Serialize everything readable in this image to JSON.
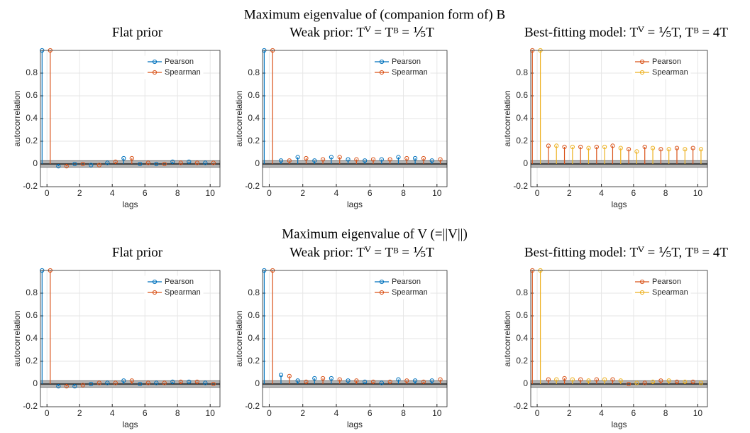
{
  "figure_titles": [
    "Maximum eigenvalue of (companion form of) B",
    "Maximum eigenvalue of V (=||V||)"
  ],
  "chart_data": [
    {
      "type": "stem",
      "title": "Flat prior",
      "xlabel": "lags",
      "ylabel": "autocorrelation",
      "xlim": [
        -0.4,
        10.6
      ],
      "ylim": [
        -0.2,
        1
      ],
      "xticks": [
        0,
        2,
        4,
        6,
        8,
        10
      ],
      "yticks": [
        -0.2,
        0,
        0.2,
        0.4,
        0.6,
        0.8
      ],
      "grid": true,
      "legend": "upper right",
      "confidence_band": [
        -0.03,
        0.03
      ],
      "series": [
        {
          "name": "Pearson",
          "color": "#0072bd",
          "x": [
            -0.3,
            0.7,
            1.7,
            2.7,
            3.7,
            4.7,
            5.7,
            6.7,
            7.7,
            8.7,
            9.7
          ],
          "values": [
            1,
            -0.02,
            0.0,
            -0.01,
            0.01,
            0.05,
            0.0,
            0.0,
            0.02,
            0.02,
            0.01
          ]
        },
        {
          "name": "Spearman",
          "color": "#d95319",
          "x": [
            0.2,
            1.2,
            2.2,
            3.2,
            4.2,
            5.2,
            6.2,
            7.2,
            8.2,
            9.2,
            10.2
          ],
          "values": [
            1,
            -0.02,
            0.0,
            -0.01,
            0.02,
            0.05,
            0.01,
            0.0,
            0.01,
            0.01,
            0.01
          ]
        }
      ]
    },
    {
      "type": "stem",
      "title": "Weak prior: Tⱽ = Tᴮ = ⅕T",
      "xlabel": "lags",
      "ylabel": "autocorrelation",
      "xlim": [
        -0.4,
        10.6
      ],
      "ylim": [
        -0.2,
        1
      ],
      "xticks": [
        0,
        2,
        4,
        6,
        8,
        10
      ],
      "yticks": [
        -0.2,
        0,
        0.2,
        0.4,
        0.6,
        0.8
      ],
      "grid": true,
      "legend": "upper right",
      "confidence_band": [
        -0.03,
        0.03
      ],
      "series": [
        {
          "name": "Pearson",
          "color": "#0072bd",
          "x": [
            -0.3,
            0.7,
            1.7,
            2.7,
            3.7,
            4.7,
            5.7,
            6.7,
            7.7,
            8.7,
            9.7
          ],
          "values": [
            1,
            0.03,
            0.06,
            0.03,
            0.06,
            0.04,
            0.03,
            0.04,
            0.06,
            0.05,
            0.03
          ]
        },
        {
          "name": "Spearman",
          "color": "#d95319",
          "x": [
            0.2,
            1.2,
            2.2,
            3.2,
            4.2,
            5.2,
            6.2,
            7.2,
            8.2,
            9.2,
            10.2
          ],
          "values": [
            1,
            0.03,
            0.05,
            0.04,
            0.06,
            0.04,
            0.04,
            0.04,
            0.05,
            0.05,
            0.04
          ]
        }
      ]
    },
    {
      "type": "stem",
      "title": "Best-fitting model: Tⱽ = ⅕T, Tᴮ = 4T",
      "xlabel": "lags",
      "ylabel": "autocorrelation",
      "xlim": [
        -0.4,
        10.6
      ],
      "ylim": [
        -0.2,
        1
      ],
      "xticks": [
        0,
        2,
        4,
        6,
        8,
        10
      ],
      "yticks": [
        -0.2,
        0,
        0.2,
        0.4,
        0.6,
        0.8
      ],
      "grid": true,
      "legend": "upper right",
      "confidence_band": [
        -0.03,
        0.03
      ],
      "series": [
        {
          "name": "Pearson",
          "color": "#d95319",
          "x": [
            -0.3,
            0.7,
            1.7,
            2.7,
            3.7,
            4.7,
            5.7,
            6.7,
            7.7,
            8.7,
            9.7
          ],
          "values": [
            1,
            0.16,
            0.15,
            0.15,
            0.15,
            0.16,
            0.13,
            0.15,
            0.13,
            0.14,
            0.14
          ]
        },
        {
          "name": "Spearman",
          "color": "#edb120",
          "x": [
            0.2,
            1.2,
            2.2,
            3.2,
            4.2,
            5.2,
            6.2,
            7.2,
            8.2,
            9.2,
            10.2
          ],
          "values": [
            1,
            0.16,
            0.15,
            0.14,
            0.15,
            0.14,
            0.11,
            0.14,
            0.13,
            0.13,
            0.13
          ]
        }
      ]
    },
    {
      "type": "stem",
      "title": "Flat prior",
      "xlabel": "lags",
      "ylabel": "autocorrelation",
      "xlim": [
        -0.4,
        10.6
      ],
      "ylim": [
        -0.2,
        1
      ],
      "xticks": [
        0,
        2,
        4,
        6,
        8,
        10
      ],
      "yticks": [
        -0.2,
        0,
        0.2,
        0.4,
        0.6,
        0.8
      ],
      "grid": true,
      "legend": "upper right",
      "confidence_band": [
        -0.03,
        0.03
      ],
      "series": [
        {
          "name": "Pearson",
          "color": "#0072bd",
          "x": [
            -0.3,
            0.7,
            1.7,
            2.7,
            3.7,
            4.7,
            5.7,
            6.7,
            7.7,
            8.7,
            9.7
          ],
          "values": [
            1,
            -0.02,
            -0.02,
            0.0,
            0.01,
            0.03,
            0.0,
            0.01,
            0.02,
            0.02,
            0.01
          ]
        },
        {
          "name": "Spearman",
          "color": "#d95319",
          "x": [
            0.2,
            1.2,
            2.2,
            3.2,
            4.2,
            5.2,
            6.2,
            7.2,
            8.2,
            9.2,
            10.2
          ],
          "values": [
            1,
            -0.02,
            -0.01,
            0.01,
            0.01,
            0.03,
            0.01,
            0.01,
            0.02,
            0.02,
            0.0
          ]
        }
      ]
    },
    {
      "type": "stem",
      "title": "Weak prior: Tⱽ = Tᴮ = ⅕T",
      "xlabel": "lags",
      "ylabel": "autocorrelation",
      "xlim": [
        -0.4,
        10.6
      ],
      "ylim": [
        -0.2,
        1
      ],
      "xticks": [
        0,
        2,
        4,
        6,
        8,
        10
      ],
      "yticks": [
        -0.2,
        0,
        0.2,
        0.4,
        0.6,
        0.8
      ],
      "grid": true,
      "legend": "upper right",
      "confidence_band": [
        -0.03,
        0.03
      ],
      "series": [
        {
          "name": "Pearson",
          "color": "#0072bd",
          "x": [
            -0.3,
            0.7,
            1.7,
            2.7,
            3.7,
            4.7,
            5.7,
            6.7,
            7.7,
            8.7,
            9.7
          ],
          "values": [
            1,
            0.08,
            0.03,
            0.05,
            0.05,
            0.03,
            0.02,
            0.01,
            0.04,
            0.03,
            0.03
          ]
        },
        {
          "name": "Spearman",
          "color": "#d95319",
          "x": [
            0.2,
            1.2,
            2.2,
            3.2,
            4.2,
            5.2,
            6.2,
            7.2,
            8.2,
            9.2,
            10.2
          ],
          "values": [
            1,
            0.07,
            0.02,
            0.05,
            0.04,
            0.03,
            0.02,
            0.02,
            0.03,
            0.02,
            0.04
          ]
        }
      ]
    },
    {
      "type": "stem",
      "title": "Best-fitting model: Tⱽ = ⅕T, Tᴮ = 4T",
      "xlabel": "lags",
      "ylabel": "autocorrelation",
      "xlim": [
        -0.4,
        10.6
      ],
      "ylim": [
        -0.2,
        1
      ],
      "xticks": [
        0,
        2,
        4,
        6,
        8,
        10
      ],
      "yticks": [
        -0.2,
        0,
        0.2,
        0.4,
        0.6,
        0.8
      ],
      "grid": true,
      "legend": "upper right",
      "confidence_band": [
        -0.03,
        0.03
      ],
      "series": [
        {
          "name": "Pearson",
          "color": "#d95319",
          "x": [
            -0.3,
            0.7,
            1.7,
            2.7,
            3.7,
            4.7,
            5.7,
            6.7,
            7.7,
            8.7,
            9.7
          ],
          "values": [
            1,
            0.04,
            0.05,
            0.04,
            0.04,
            0.04,
            0.0,
            0.01,
            0.03,
            0.02,
            0.02
          ]
        },
        {
          "name": "Spearman",
          "color": "#edb120",
          "x": [
            0.2,
            1.2,
            2.2,
            3.2,
            4.2,
            5.2,
            6.2,
            7.2,
            8.2,
            9.2,
            10.2
          ],
          "values": [
            1,
            0.04,
            0.04,
            0.03,
            0.04,
            0.03,
            0.01,
            0.02,
            0.03,
            0.02,
            0.01
          ]
        }
      ]
    }
  ]
}
